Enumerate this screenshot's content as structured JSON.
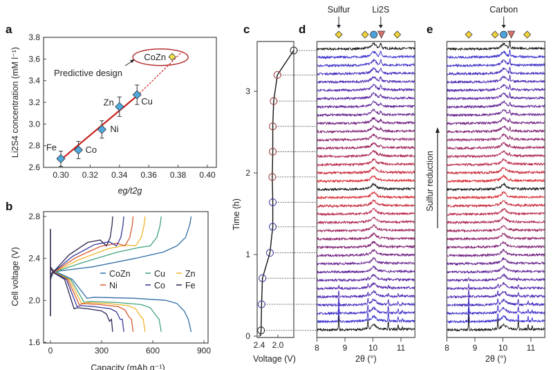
{
  "panels": {
    "a": "a",
    "b": "b",
    "c": "c",
    "d": "d",
    "e": "e"
  },
  "chart_data": [
    {
      "panel": "a",
      "type": "scatter",
      "xlabel": "eg/t2g",
      "ylabel": "Li2S4 concentration (mM l⁻¹)",
      "xlim": [
        0.29,
        0.4
      ],
      "ylim": [
        2.6,
        3.8
      ],
      "xticks": [
        "0.30",
        "0.32",
        "0.34",
        "0.36",
        "0.38",
        "0.40"
      ],
      "yticks": [
        "2.6",
        "2.8",
        "3.0",
        "3.2",
        "3.4",
        "3.6",
        "3.8"
      ],
      "points": [
        {
          "label": "Fe",
          "x": 0.3,
          "y": 2.68,
          "err": 0.07
        },
        {
          "label": "Co",
          "x": 0.312,
          "y": 2.76,
          "err": 0.08
        },
        {
          "label": "Ni",
          "x": 0.328,
          "y": 2.95,
          "err": 0.08
        },
        {
          "label": "Zn",
          "x": 0.34,
          "y": 3.16,
          "err": 0.09
        },
        {
          "label": "Cu",
          "x": 0.352,
          "y": 3.27,
          "err": 0.09
        }
      ],
      "predicted": {
        "label": "CoZn",
        "x": 0.376,
        "y": 3.62
      },
      "fit": {
        "x0": 0.3,
        "y0": 2.67,
        "x1": 0.352,
        "y1": 3.26,
        "x_extrap": 0.383,
        "y_extrap": 3.67
      },
      "annotation": "Predictive design",
      "colors": {
        "point": "#4fa9dc",
        "predicted": "#f2e34a",
        "fit": "#c8201e",
        "ellipse": "#b5302e"
      }
    },
    {
      "panel": "b",
      "type": "line",
      "xlabel": "Capacity (mAh g⁻¹)",
      "ylabel": "Cell voltage (V)",
      "xlim": [
        0,
        900
      ],
      "ylim": [
        1.6,
        2.8
      ],
      "xticks": [
        "0",
        "300",
        "600",
        "900"
      ],
      "yticks": [
        "1.6",
        "2.0",
        "2.4",
        "2.8"
      ],
      "legend_position": "center-right",
      "series": [
        {
          "name": "CoZn",
          "color": "#2f6ea5",
          "capacity": 825,
          "plateau_voltage": 2.02
        },
        {
          "name": "Cu",
          "color": "#3fa27a",
          "capacity": 650,
          "plateau_voltage": 1.98
        },
        {
          "name": "Zn",
          "color": "#f0b429",
          "capacity": 555,
          "plateau_voltage": 1.97
        },
        {
          "name": "Ni",
          "color": "#d9582f",
          "capacity": 485,
          "plateau_voltage": 1.96
        },
        {
          "name": "Co",
          "color": "#35379a",
          "capacity": 430,
          "plateau_voltage": 1.94
        },
        {
          "name": "Fe",
          "color": "#2b2450",
          "capacity": 365,
          "plateau_voltage": 1.92
        }
      ]
    },
    {
      "panel": "c",
      "type": "line",
      "xlabel": "Voltage (V)",
      "ylabel": "Time (h)",
      "xticks": [
        "2.4",
        "2.0"
      ],
      "yticks": [
        "0",
        "1",
        "2",
        "3"
      ],
      "ylim": [
        0,
        3.6
      ],
      "points": [
        {
          "t": 0.07,
          "v": 2.36
        },
        {
          "t": 0.39,
          "v": 2.35
        },
        {
          "t": 0.71,
          "v": 2.33
        },
        {
          "t": 1.02,
          "v": 2.17
        },
        {
          "t": 1.34,
          "v": 2.11
        },
        {
          "t": 1.64,
          "v": 2.11
        },
        {
          "t": 1.95,
          "v": 2.12
        },
        {
          "t": 2.26,
          "v": 2.11
        },
        {
          "t": 2.57,
          "v": 2.11
        },
        {
          "t": 2.88,
          "v": 2.09
        },
        {
          "t": 3.2,
          "v": 2.01
        },
        {
          "t": 3.5,
          "v": 1.66
        }
      ]
    },
    {
      "panel": "d",
      "type": "line",
      "xlabel": "2θ (°)",
      "xlim": [
        8,
        11.5
      ],
      "xticks": [
        "8",
        "9",
        "10",
        "11"
      ],
      "pattern_count": 35,
      "top_labels": [
        {
          "text": "Sulfur",
          "x": 8.78
        },
        {
          "text": "Li2S",
          "x": 10.28
        }
      ],
      "markers": [
        {
          "shape": "diamond",
          "phase": "sulfur",
          "x": 8.78
        },
        {
          "shape": "diamond",
          "phase": "sulfur",
          "x": 9.72
        },
        {
          "shape": "circle",
          "phase": "carbon",
          "x": 10.03
        },
        {
          "shape": "triangle",
          "phase": "Li2S",
          "x": 10.3
        },
        {
          "shape": "diamond",
          "phase": "sulfur",
          "x": 10.87
        }
      ]
    },
    {
      "panel": "e",
      "type": "line",
      "xlabel": "2θ (°)",
      "xlim": [
        8,
        11.5
      ],
      "xticks": [
        "8",
        "9",
        "10",
        "11"
      ],
      "pattern_count": 35,
      "top_labels": [
        {
          "text": "Carbon",
          "x": 10.03
        }
      ],
      "side_label": "Sulfur reduction",
      "markers": [
        {
          "shape": "diamond",
          "phase": "sulfur",
          "x": 8.78
        },
        {
          "shape": "diamond",
          "phase": "sulfur",
          "x": 9.72
        },
        {
          "shape": "circle",
          "phase": "carbon",
          "x": 10.03
        },
        {
          "shape": "triangle",
          "phase": "Li2S",
          "x": 10.3
        },
        {
          "shape": "diamond",
          "phase": "sulfur",
          "x": 10.87
        }
      ]
    }
  ],
  "marker_colors": {
    "diamond": "#f2d33a",
    "circle": "#4aa3db",
    "triangle": "#d9706a"
  },
  "trace_colors": {
    "end": "#111111",
    "blue": "#2a2ad6",
    "purple": "#6a2088",
    "red": "#e3261f"
  }
}
